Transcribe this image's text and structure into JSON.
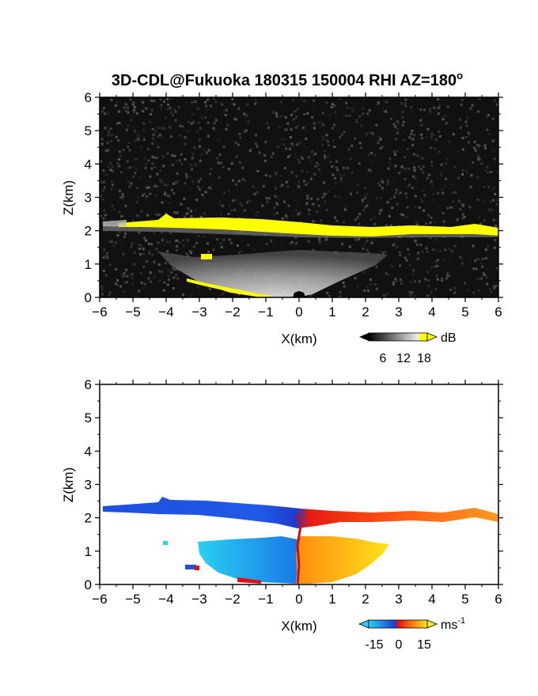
{
  "title": "3D-CDL@Fukuoka 180315 150004 RHI AZ=180",
  "title_degree": "o",
  "chart_data": [
    {
      "type": "heatmap",
      "panel": "reflectivity",
      "xlabel": "X(km)",
      "ylabel": "Z(km)",
      "xlim": [
        -6,
        6
      ],
      "ylim": [
        0,
        6
      ],
      "xticks": [
        "-6",
        "-5",
        "-4",
        "-3",
        "-2",
        "-1",
        "0",
        "1",
        "2",
        "3",
        "4",
        "5",
        "6"
      ],
      "yticks": [
        "0",
        "1",
        "2",
        "3",
        "4",
        "5",
        "6"
      ],
      "colorbar": {
        "unit": "dB",
        "ticks": [
          "6",
          "12",
          "18"
        ],
        "scale": "gray-to-white, yellow above 18"
      },
      "colors": {
        "background": "#111111",
        "cloud_base": "#ffff00",
        "echo": "#cfcfcf"
      },
      "features": [
        {
          "name": "cloud base layer",
          "x": [
            -5.5,
            -4.5,
            -3,
            -2,
            -1,
            0,
            1,
            2,
            3,
            4,
            5,
            6
          ],
          "z": [
            2.28,
            2.25,
            2.32,
            2.3,
            2.25,
            2.18,
            2.1,
            2.08,
            2.1,
            2.12,
            2.1,
            1.98
          ]
        },
        {
          "name": "lower echo fan",
          "x": [
            -4.2,
            -2.5,
            -1,
            0,
            1,
            2,
            2.6
          ],
          "z": [
            1.3,
            1.25,
            1.2,
            1.15,
            1.2,
            1.25,
            1.15
          ]
        }
      ]
    },
    {
      "type": "heatmap",
      "panel": "doppler velocity",
      "xlabel": "X(km)",
      "ylabel": "Z(km)",
      "xlim": [
        -6,
        6
      ],
      "ylim": [
        0,
        6
      ],
      "xticks": [
        "-6",
        "-5",
        "-4",
        "-3",
        "-2",
        "-1",
        "0",
        "1",
        "2",
        "3",
        "4",
        "5",
        "6"
      ],
      "yticks": [
        "0",
        "1",
        "2",
        "3",
        "4",
        "5",
        "6"
      ],
      "colorbar": {
        "unit": "ms",
        "unit_exponent": "-1",
        "ticks": [
          "-15",
          "0",
          "15"
        ],
        "range": [
          -15,
          15
        ]
      },
      "colors": {
        "negative_strong": "#1f4fe0",
        "negative_weak": "#29c4f0",
        "zero": "#e01010",
        "positive_weak": "#ff6a10",
        "positive_strong": "#ffe61a"
      }
    }
  ]
}
